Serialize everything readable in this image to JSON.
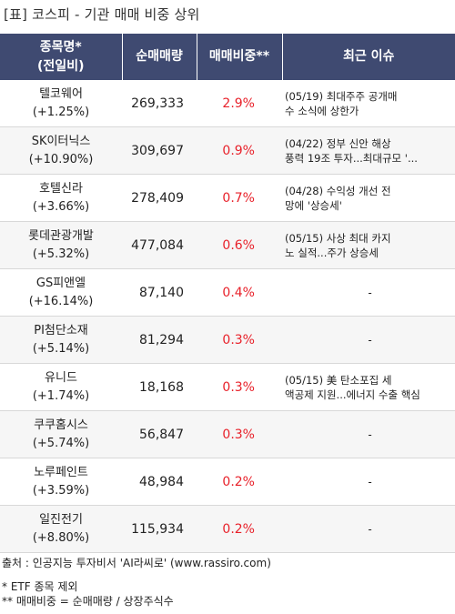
{
  "title": "[표] 코스피 - 기관 매매 비중 상위",
  "headers": {
    "name": [
      "종목명*",
      "(전일비)"
    ],
    "volume": "순매매량",
    "ratio": "매매비중**",
    "issue": "최근 이슈"
  },
  "rows": [
    {
      "name": "텔코웨어",
      "change": "(+1.25%)",
      "volume": "269,333",
      "ratio": "2.9%",
      "issue": [
        "(05/19) 최대주주 공개매",
        "수 소식에 상한가"
      ]
    },
    {
      "name": "SK이터닉스",
      "change": "(+10.90%)",
      "volume": "309,697",
      "ratio": "0.9%",
      "issue": [
        "(04/22) 정부 신안 해상",
        "풍력 19조 투자...최대규모 '..."
      ]
    },
    {
      "name": "호텔신라",
      "change": "(+3.66%)",
      "volume": "278,409",
      "ratio": "0.7%",
      "issue": [
        "(04/28) 수익성 개선 전",
        "망에 '상승세'"
      ]
    },
    {
      "name": "롯데관광개발",
      "change": "(+5.32%)",
      "volume": "477,084",
      "ratio": "0.6%",
      "issue": [
        "(05/15) 사상 최대 카지",
        "노 실적...주가 상승세"
      ]
    },
    {
      "name": "GS피앤엘",
      "change": "(+16.14%)",
      "volume": "87,140",
      "ratio": "0.4%",
      "issue": [
        "-"
      ]
    },
    {
      "name": "PI첨단소재",
      "change": "(+5.14%)",
      "volume": "81,294",
      "ratio": "0.3%",
      "issue": [
        "-"
      ]
    },
    {
      "name": "유니드",
      "change": "(+1.74%)",
      "volume": "18,168",
      "ratio": "0.3%",
      "issue": [
        "(05/15) 美 탄소포집 세",
        "액공제 지원...에너지 수출 핵심"
      ]
    },
    {
      "name": "쿠쿠홈시스",
      "change": "(+5.74%)",
      "volume": "56,847",
      "ratio": "0.3%",
      "issue": [
        "-"
      ]
    },
    {
      "name": "노루페인트",
      "change": "(+3.59%)",
      "volume": "48,984",
      "ratio": "0.2%",
      "issue": [
        "-"
      ]
    },
    {
      "name": "일진전기",
      "change": "(+8.80%)",
      "volume": "115,934",
      "ratio": "0.2%",
      "issue": [
        "-"
      ]
    }
  ],
  "footer": {
    "source": "출처 : 인공지능 투자비서 'AI라씨로' (www.rassiro.com)",
    "note1": "* ETF 종목 제외",
    "note2": "** 매매비중 = 순매매량 / 상장주식수"
  }
}
